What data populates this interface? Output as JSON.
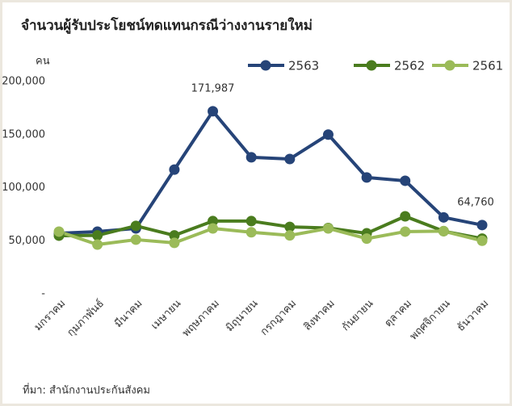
{
  "chart_data": {
    "type": "line",
    "title": "จำนวนผู้รับประโยชน์ทดแทนกรณีว่างงานรายใหม่",
    "y_label": "คน",
    "source": "ที่มา: สำนักงานประกันสังคม",
    "categories": [
      "มกราคม",
      "กุมภาพันธ์",
      "มีนาคม",
      "เมษายน",
      "พฤษภาคม",
      "มิถุนายน",
      "กรกฎาคม",
      "สิงหาคม",
      "กันยายน",
      "ตุลาคม",
      "พฤศจิกายน",
      "ธันวาคม"
    ],
    "series": [
      {
        "name": "2563",
        "color": "#264478",
        "values": [
          57000,
          58600,
          61600,
          117000,
          171987,
          128600,
          127000,
          150000,
          109600,
          106500,
          72000,
          64760
        ],
        "value_labels": [
          null,
          null,
          null,
          null,
          "171,987",
          null,
          null,
          null,
          null,
          null,
          null,
          "64,760"
        ]
      },
      {
        "name": "2562",
        "color": "#4a7c1e",
        "values": [
          54800,
          55000,
          64000,
          55000,
          68500,
          68500,
          63000,
          62000,
          57000,
          73000,
          59000,
          52000
        ]
      },
      {
        "name": "2561",
        "color": "#9bbb59",
        "values": [
          58600,
          46400,
          51000,
          48000,
          61600,
          58000,
          55000,
          61600,
          52000,
          58600,
          59000,
          50000
        ]
      }
    ],
    "ylim": [
      0,
      200000
    ],
    "yticks": [
      {
        "value": 0,
        "label": "-"
      },
      {
        "value": 50000,
        "label": "50,000"
      },
      {
        "value": 100000,
        "label": "100,000"
      },
      {
        "value": 150000,
        "label": "150,000"
      },
      {
        "value": 200000,
        "label": "200,000"
      }
    ],
    "grid": false,
    "legend": "top-right"
  }
}
